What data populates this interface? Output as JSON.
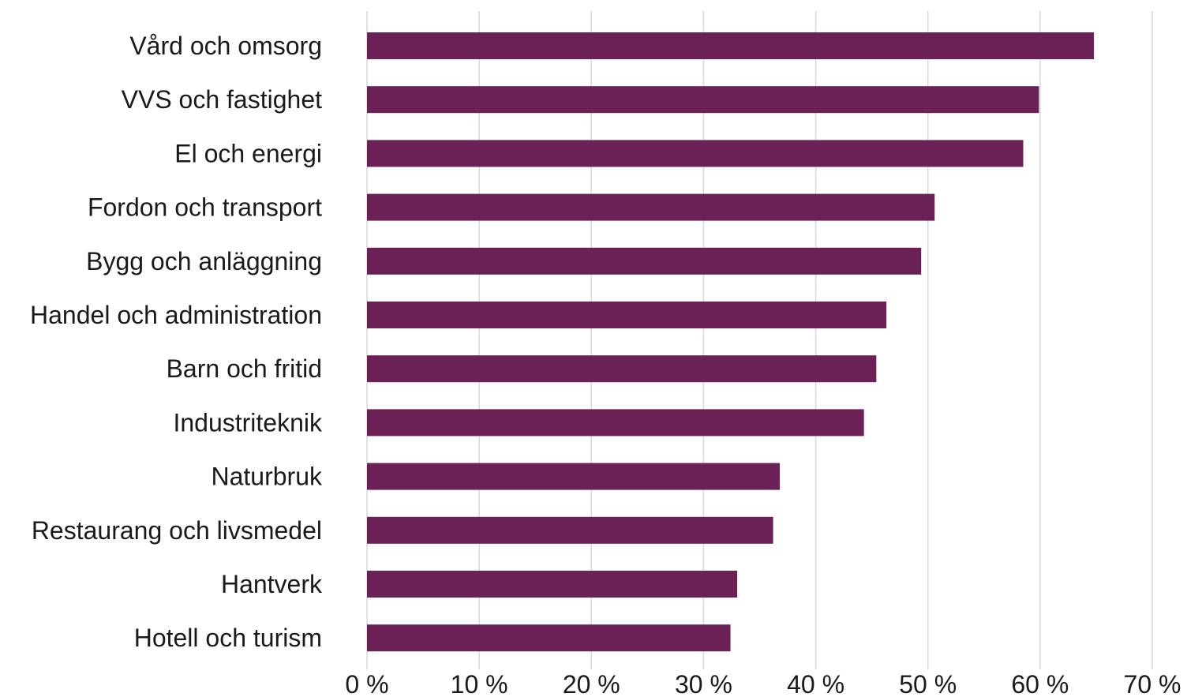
{
  "chart_data": {
    "type": "bar",
    "orientation": "horizontal",
    "categories": [
      "Vård och omsorg",
      "VVS och fastighet",
      "El och energi",
      "Fordon och transport",
      "Bygg och anläggning",
      "Handel och administration",
      "Barn och fritid",
      "Industriteknik",
      "Naturbruk",
      "Restaurang och livsmedel",
      "Hantverk",
      "Hotell och turism"
    ],
    "values": [
      64.8,
      59.9,
      58.5,
      50.6,
      49.4,
      46.3,
      45.4,
      44.3,
      36.8,
      36.2,
      33.0,
      32.4
    ],
    "x_ticks": [
      "0 %",
      "10 %",
      "20 %",
      "30 %",
      "40 %",
      "50 %",
      "60 %",
      "70 %"
    ],
    "xlim": [
      0,
      70
    ],
    "grid": "vertical",
    "bar_color": "#6b2156",
    "grid_color": "#d9d9d9"
  }
}
